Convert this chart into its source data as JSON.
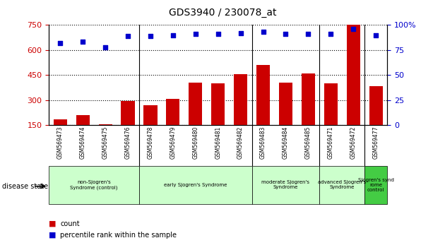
{
  "title": "GDS3940 / 230078_at",
  "samples": [
    "GSM569473",
    "GSM569474",
    "GSM569475",
    "GSM569476",
    "GSM569478",
    "GSM569479",
    "GSM569480",
    "GSM569481",
    "GSM569482",
    "GSM569483",
    "GSM569484",
    "GSM569485",
    "GSM569471",
    "GSM569472",
    "GSM569477"
  ],
  "counts": [
    185,
    210,
    155,
    295,
    270,
    305,
    405,
    400,
    455,
    510,
    405,
    460,
    400,
    760,
    385
  ],
  "percentiles": [
    82,
    83,
    78,
    89,
    89,
    90,
    91,
    91,
    92,
    93,
    91,
    91,
    91,
    96,
    90
  ],
  "bar_color": "#cc0000",
  "dot_color": "#0000cc",
  "ylim_left": [
    150,
    750
  ],
  "ylim_right": [
    0,
    100
  ],
  "yticks_left": [
    150,
    300,
    450,
    600,
    750
  ],
  "yticks_right": [
    0,
    25,
    50,
    75,
    100
  ],
  "group_boundaries": [
    3.5,
    8.5,
    11.5,
    13.5
  ],
  "group_configs": [
    {
      "indices": [
        0,
        1,
        2,
        3
      ],
      "label": "non-Sjogren's\nSyndrome (control)",
      "color": "#ccffcc"
    },
    {
      "indices": [
        4,
        5,
        6,
        7,
        8
      ],
      "label": "early Sjogren's Syndrome",
      "color": "#ccffcc"
    },
    {
      "indices": [
        9,
        10,
        11
      ],
      "label": "moderate Sjogren's\nSyndrome",
      "color": "#ccffcc"
    },
    {
      "indices": [
        12,
        13
      ],
      "label": "advanced Sjogren's\nSyndrome",
      "color": "#ccffcc"
    },
    {
      "indices": [
        14
      ],
      "label": "Sjogren's synd\nrome\ncontrol",
      "color": "#44cc44"
    }
  ],
  "legend_count_label": "count",
  "legend_pct_label": "percentile rank within the sample",
  "background_color": "#ffffff",
  "tick_area_color": "#cccccc"
}
